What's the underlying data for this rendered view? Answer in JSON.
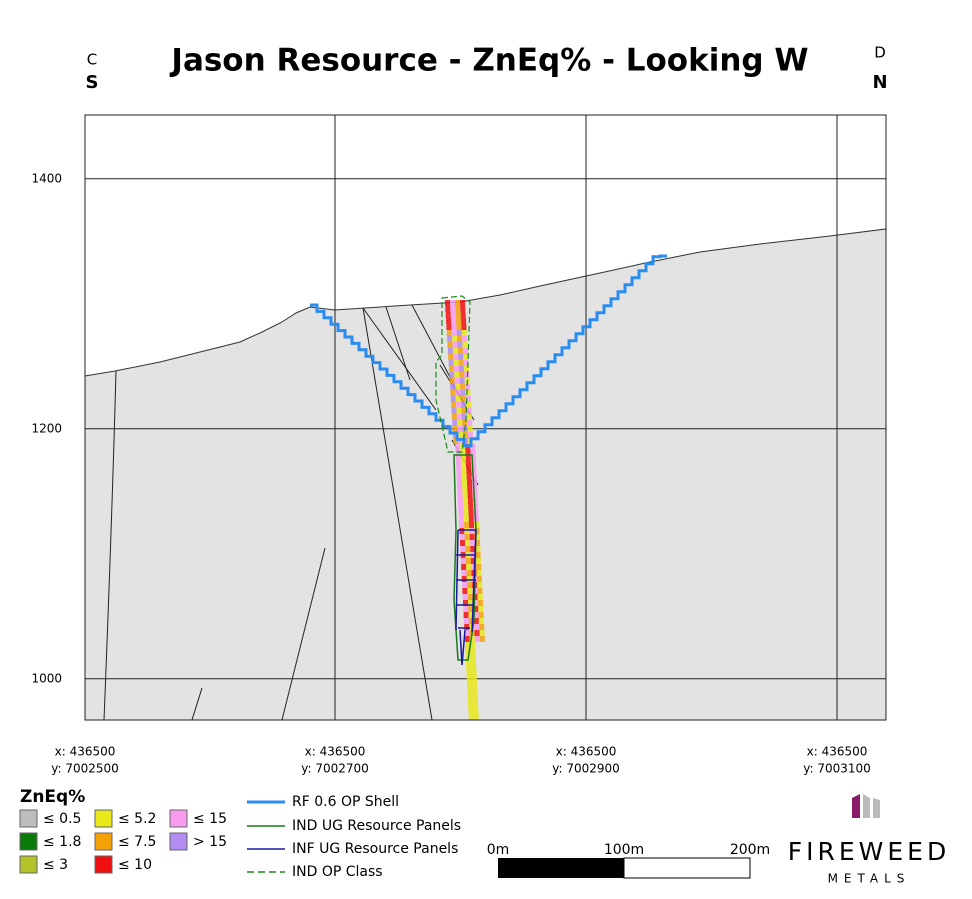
{
  "header": {
    "title": "Jason Resource - ZnEq% - Looking W",
    "left_small": "C",
    "left_big": "S",
    "right_small": "D",
    "right_big": "N"
  },
  "axis": {
    "ylim": [
      967,
      1451
    ],
    "yticks": [
      1000,
      1200,
      1400
    ],
    "xlabels": [
      {
        "x": "x: 436500",
        "y": "y: 7002500"
      },
      {
        "x": "x: 436500",
        "y": "y: 7002700"
      },
      {
        "x": "x: 436500",
        "y": "y: 7002900"
      },
      {
        "x": "x: 436500",
        "y": "y: 7003100"
      }
    ]
  },
  "legend": {
    "title": "ZnEq%",
    "items": [
      {
        "label": "≤ 0.5",
        "color": "#bdbdbd"
      },
      {
        "label": "≤ 1.8",
        "color": "#0a7a0a"
      },
      {
        "label": "≤ 3",
        "color": "#b3c42a"
      },
      {
        "label": "≤ 5.2",
        "color": "#e8e81a"
      },
      {
        "label": "≤ 7.5",
        "color": "#f5a20a"
      },
      {
        "label": "≤ 10",
        "color": "#f01010"
      },
      {
        "label": "≤ 15",
        "color": "#f79bf0"
      },
      {
        "label": "> 15",
        "color": "#b28cf0"
      }
    ]
  },
  "line_legend": [
    "RF 0.6 OP Shell",
    "IND UG Resource Panels",
    "INF UG Resource Panels",
    "IND OP Class"
  ],
  "scale_bar": [
    "0m",
    "100m",
    "200m"
  ],
  "logo": {
    "name": "FIREWEED",
    "sub": "METALS"
  }
}
